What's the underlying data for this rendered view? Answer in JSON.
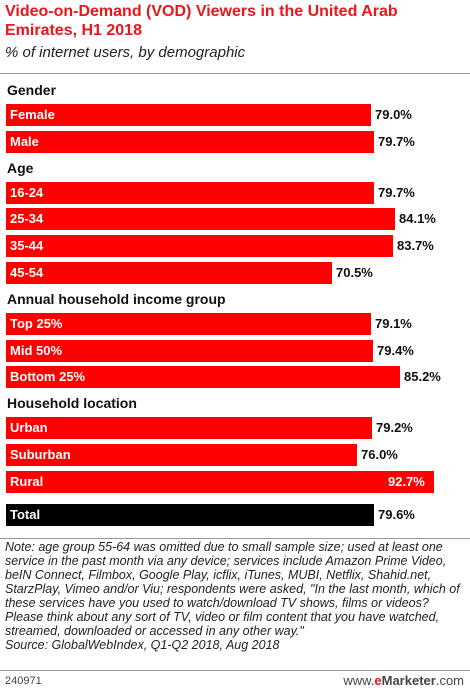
{
  "chart_data": {
    "type": "bar",
    "title": "Video-on-Demand (VOD) Viewers in the United Arab Emirates, H1 2018",
    "subtitle": "% of internet users, by demographic",
    "xlim": [
      0,
      100
    ],
    "colors": {
      "bar": "#ff0000",
      "total": "#000000",
      "title": "#e8171c"
    },
    "groups": [
      {
        "name": "Gender",
        "items": [
          {
            "label": "Female",
            "value": 79.0,
            "display": "79.0%"
          },
          {
            "label": "Male",
            "value": 79.7,
            "display": "79.7%"
          }
        ]
      },
      {
        "name": "Age",
        "items": [
          {
            "label": "16-24",
            "value": 79.7,
            "display": "79.7%"
          },
          {
            "label": "25-34",
            "value": 84.1,
            "display": "84.1%"
          },
          {
            "label": "35-44",
            "value": 83.7,
            "display": "83.7%"
          },
          {
            "label": "45-54",
            "value": 70.5,
            "display": "70.5%"
          }
        ]
      },
      {
        "name": "Annual household income group",
        "items": [
          {
            "label": "Top 25%",
            "value": 79.1,
            "display": "79.1%"
          },
          {
            "label": "Mid 50%",
            "value": 79.4,
            "display": "79.4%"
          },
          {
            "label": "Bottom 25%",
            "value": 85.2,
            "display": "85.2%"
          }
        ]
      },
      {
        "name": "Household location",
        "items": [
          {
            "label": "Urban",
            "value": 79.2,
            "display": "79.2%"
          },
          {
            "label": "Suburban",
            "value": 76.0,
            "display": "76.0%"
          },
          {
            "label": "Rural",
            "value": 92.7,
            "display": "92.7%"
          }
        ]
      },
      {
        "name": "",
        "items": [
          {
            "label": "Total",
            "value": 79.6,
            "display": "79.6%",
            "total": true
          }
        ]
      }
    ]
  },
  "note": "Note: age group 55-64 was omitted due to small sample size; used at least one service in the past month via any device; services include Amazon Prime Video, beIN Connect, Filmbox, Google Play, icflix, iTunes, MUBI, Netflix, Shahid.net, StarzPlay, Vimeo and/or Viu; respondents were asked, \"In the last month, which of these services have you used to watch/download TV shows, films or videos? Please think about any sort of TV, video or film content that you have watched, streamed, downloaded or accessed in any other way.\"",
  "source": "Source: GlobalWebIndex, Q1-Q2 2018, Aug 2018",
  "footer": {
    "id": "240971",
    "brand_e": "e",
    "brand_rest": "Marketer",
    "brand_suffix": ".com",
    "brand_prefix": "www."
  }
}
